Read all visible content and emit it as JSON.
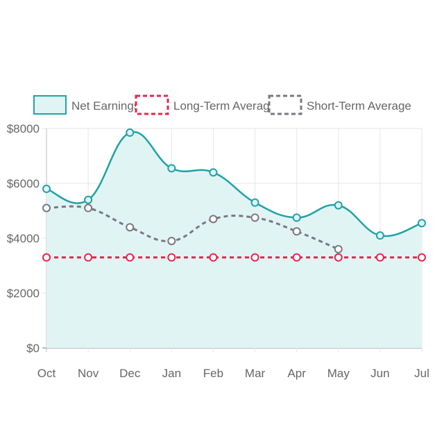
{
  "chart_data": {
    "type": "line",
    "categories": [
      "Oct",
      "Nov",
      "Dec",
      "Jan",
      "Feb",
      "Mar",
      "Apr",
      "May",
      "Jun",
      "Jul"
    ],
    "y_tick_labels": [
      "$0",
      "$2000",
      "$4000",
      "$6000",
      "$8000"
    ],
    "ylim": [
      0,
      8000
    ],
    "grid": true,
    "legend_position": "top",
    "series": [
      {
        "name": "Net Earnings",
        "values": [
          5800,
          5400,
          7850,
          6550,
          6400,
          5300,
          4750,
          5200,
          4100,
          4550
        ],
        "style": "solid-filled",
        "color": "#1fa2a5",
        "fill_color": "#e1f4f4"
      },
      {
        "name": "Long-Term Average",
        "values": [
          3300,
          3300,
          3300,
          3300,
          3300,
          3300,
          3300,
          3300,
          3300,
          3300
        ],
        "style": "dashed",
        "color": "#e8254e"
      },
      {
        "name": "Short-Term Average",
        "values": [
          5100,
          5100,
          4400,
          3900,
          4700,
          4750,
          4250,
          3600,
          null,
          null
        ],
        "style": "dashed",
        "color": "#787880"
      }
    ]
  }
}
